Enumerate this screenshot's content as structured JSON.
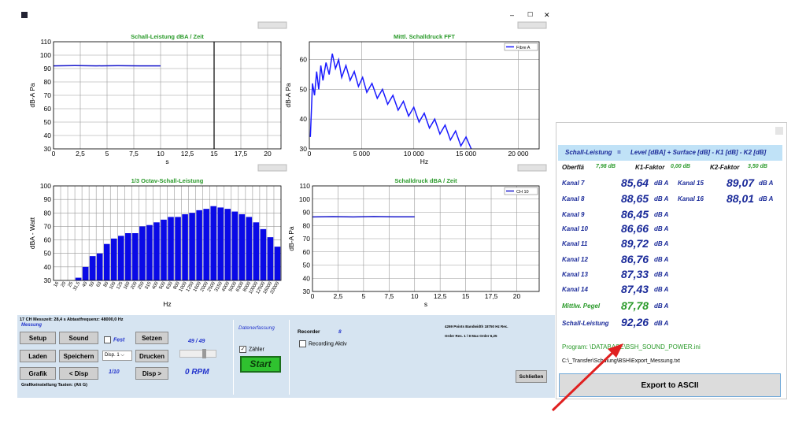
{
  "window": {
    "controls": [
      "–",
      "☐",
      "✕"
    ]
  },
  "charts": [
    {
      "type": "line",
      "title": "Schall-Leistung dBA / Zeit",
      "ylabel": "dB-A Pa",
      "xlabel": "s",
      "xlim": [
        0,
        21.25
      ],
      "ylim": [
        30,
        110
      ],
      "xticks": [
        0,
        {
          "value": 2.5,
          "label": "2,5"
        },
        5,
        {
          "value": 7.5,
          "label": "7,5"
        },
        10,
        {
          "value": 12.5,
          "label": "12,5"
        },
        15,
        {
          "value": 17.5,
          "label": "17,5"
        },
        20
      ],
      "yticks": [
        30,
        40,
        50,
        60,
        70,
        80,
        90,
        100,
        110
      ],
      "cursor": 15,
      "series": [
        {
          "color": "#1a1acc",
          "x": [
            0,
            2,
            4,
            6,
            8,
            10
          ],
          "values": [
            92,
            92.2,
            92,
            92.1,
            92,
            92
          ]
        }
      ]
    },
    {
      "type": "line",
      "title": "Mittl. Schalldruck FFT",
      "ylabel": "dB-A Pa",
      "xlabel": "Hz",
      "xlim": [
        0,
        22000
      ],
      "ylim": [
        30,
        66
      ],
      "xticks": [
        0,
        {
          "value": 5000,
          "label": "5 000"
        },
        {
          "value": 10000,
          "label": "10 000"
        },
        {
          "value": 15000,
          "label": "15 000"
        },
        {
          "value": 20000,
          "label": "20 000"
        }
      ],
      "yticks": [
        30,
        40,
        50,
        60
      ],
      "series": [
        {
          "name": "Fibre A",
          "color": "#1a1aff",
          "x": [
            100,
            300,
            500,
            700,
            900,
            1100,
            1300,
            1600,
            1900,
            2200,
            2500,
            2800,
            3100,
            3500,
            3900,
            4300,
            4700,
            5100,
            5500,
            6000,
            6500,
            7000,
            7500,
            8000,
            8500,
            9000,
            9500,
            10000,
            10500,
            11000,
            11500,
            12000,
            12500,
            13000,
            13500,
            14000,
            14500,
            15000,
            15500
          ],
          "values": [
            34,
            52,
            48,
            56,
            50,
            58,
            53,
            59,
            55,
            62,
            57,
            60,
            54,
            58,
            53,
            56,
            51,
            54,
            49,
            52,
            47,
            50,
            45,
            48,
            43,
            46,
            41,
            44,
            39,
            42,
            37,
            40,
            35,
            38,
            33,
            36,
            31,
            34,
            30
          ]
        }
      ]
    },
    {
      "type": "bar",
      "title": "1/3 Octav-Schall-Leistung",
      "ylabel": "dBA - Watt",
      "xlabel": "Hz",
      "ylim": [
        30,
        100
      ],
      "yticks": [
        30,
        40,
        50,
        60,
        70,
        80,
        90,
        100
      ],
      "color": "#0a0ae6",
      "categories": [
        "16",
        "20",
        "25",
        "31,5",
        "40",
        "50",
        "63",
        "80",
        "100",
        "125",
        "160",
        "200",
        "250",
        "315",
        "400",
        "500",
        "630",
        "800",
        "1000",
        "1250",
        "1600",
        "2000",
        "2500",
        "3150",
        "4000",
        "5000",
        "6300",
        "8000",
        "10000",
        "12500",
        "16000",
        "20000"
      ],
      "values": [
        null,
        null,
        null,
        32,
        40,
        48,
        50,
        57,
        61,
        63,
        65,
        65,
        70,
        71,
        73,
        75,
        77,
        77,
        79,
        80,
        82,
        83,
        85,
        84,
        83,
        81,
        79,
        77,
        73,
        68,
        62,
        55
      ]
    },
    {
      "type": "line",
      "title": "Schalldruck dBA / Zeit",
      "ylabel": "dB-A Pa",
      "xlabel": "s",
      "xlim": [
        0,
        22.2
      ],
      "ylim": [
        30,
        110
      ],
      "xticks": [
        0,
        {
          "value": 2.5,
          "label": "2,5"
        },
        5,
        {
          "value": 7.5,
          "label": "7,5"
        },
        10,
        {
          "value": 12.5,
          "label": "12,5"
        },
        15,
        {
          "value": 17.5,
          "label": "17,5"
        },
        20
      ],
      "yticks": [
        30,
        40,
        50,
        60,
        70,
        80,
        90,
        100,
        110
      ],
      "series": [
        {
          "name": "CH 10",
          "color": "#1a1acc",
          "x": [
            0,
            2,
            4,
            6,
            8,
            10
          ],
          "values": [
            86.5,
            86.7,
            86.5,
            86.8,
            86.6,
            86.6
          ]
        }
      ]
    }
  ],
  "panel": {
    "info": "17 CH Messzeit: 28,4 s Abtastfrequenz: 48000,0 Hz",
    "group": "Messung",
    "buttons": [
      "Setup",
      "Sound",
      "Setzen",
      "Laden",
      "Speichern",
      "Drucken",
      "Grafik",
      "< Disp",
      "Disp >"
    ],
    "fest": "Fest",
    "display": "Disp. 1",
    "page": "49 / 49",
    "zoom": "1/10",
    "rpm": "0 RPM",
    "acquisition": "Datenerfassung",
    "counter": "Zähler",
    "start": "Start",
    "recorder": "Recorder",
    "recorder_count": "8",
    "recording": "Recording Aktiv",
    "points": "4269 Points  Bandwidth 18750 Hz  Rec.",
    "order": "Order Res.  1 / 8 Max Order 6,25",
    "hint": "Grafikeinstellung Tasten: (Alt G)",
    "close": "Schließen"
  },
  "results": {
    "formula_left": "Schall-Leistung",
    "formula_eq": "=",
    "formula_right": "Level [dBA] + Surface [dB] - K1 [dB] - K2 [dB]",
    "surface_label": "Oberflä",
    "surface": "7,98 dB",
    "k1_label": "K1-Faktor",
    "k1": "0,00 dB",
    "k2_label": "K2-Faktor",
    "k2": "3,50 dB",
    "unit": "dB A",
    "channels": [
      {
        "name": "Kanal 7",
        "value": "85,64"
      },
      {
        "name": "Kanal 8",
        "value": "88,65"
      },
      {
        "name": "Kanal 9",
        "value": "86,45"
      },
      {
        "name": "Kanal 10",
        "value": "86,66"
      },
      {
        "name": "Kanal 11",
        "value": "89,72"
      },
      {
        "name": "Kanal 12",
        "value": "86,76"
      },
      {
        "name": "Kanal 13",
        "value": "87,33"
      },
      {
        "name": "Kanal 14",
        "value": "87,43"
      },
      {
        "name": "Kanal 15",
        "value": "89,07"
      },
      {
        "name": "Kanal 16",
        "value": "88,01"
      }
    ],
    "mean_label": "Mittlw. Pegel",
    "mean": "87,78",
    "power_label": "Schall-Leistung",
    "power": "92,26",
    "program": "Program: \\DATABASE\\BSH_SOUND_POWER.ini",
    "path": "C:\\_Transfer\\Schulung\\BSH\\Export_Messung.txt",
    "export": "Export to ASCII"
  }
}
